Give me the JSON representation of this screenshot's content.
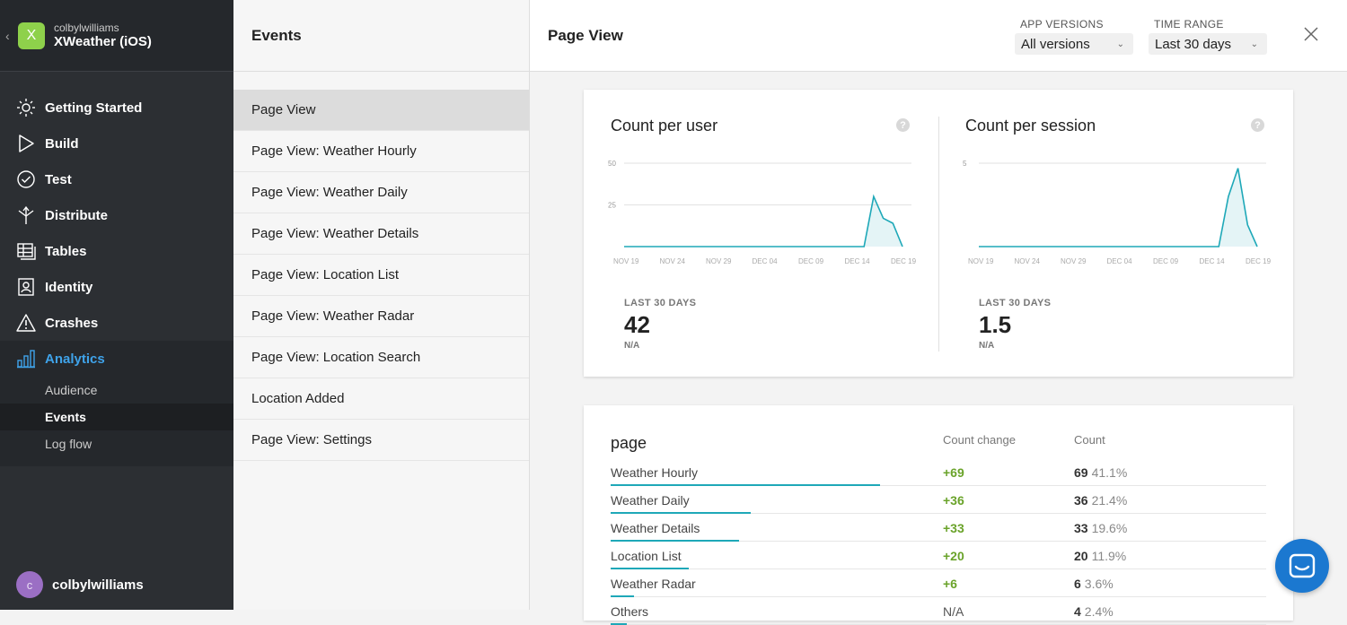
{
  "app": {
    "owner": "colbylwilliams",
    "name": "XWeather (iOS)",
    "icon_letter": "X",
    "icon_color": "#8ed14b"
  },
  "nav": {
    "items": [
      {
        "label": "Getting Started",
        "icon": "sun-icon"
      },
      {
        "label": "Build",
        "icon": "play-icon"
      },
      {
        "label": "Test",
        "icon": "check-circle-icon"
      },
      {
        "label": "Distribute",
        "icon": "distribute-icon"
      },
      {
        "label": "Tables",
        "icon": "tables-icon"
      },
      {
        "label": "Identity",
        "icon": "identity-icon"
      },
      {
        "label": "Crashes",
        "icon": "warning-icon"
      },
      {
        "label": "Analytics",
        "icon": "bar-chart-icon",
        "active": true
      }
    ],
    "sub_items": [
      {
        "label": "Audience"
      },
      {
        "label": "Events",
        "active": true
      },
      {
        "label": "Log flow"
      }
    ]
  },
  "user": {
    "initial": "c",
    "name": "colbylwilliams"
  },
  "events": {
    "header": "Events",
    "items": [
      "Page View",
      "Page View: Weather Hourly",
      "Page View: Weather Daily",
      "Page View: Weather Details",
      "Page View: Location List",
      "Page View: Weather Radar",
      "Page View: Location Search",
      "Location Added",
      "Page View: Settings"
    ],
    "selected": 0
  },
  "main": {
    "title": "Page View",
    "app_versions": {
      "label": "APP VERSIONS",
      "value": "All versions"
    },
    "time_range": {
      "label": "TIME RANGE",
      "value": "Last 30 days"
    }
  },
  "metrics": {
    "per_user": {
      "title": "Count per user",
      "stat_label": "LAST 30 DAYS",
      "stat_value": "42",
      "stat_sub": "N/A"
    },
    "per_session": {
      "title": "Count per session",
      "stat_label": "LAST 30 DAYS",
      "stat_value": "1.5",
      "stat_sub": "N/A"
    }
  },
  "chart_data": [
    {
      "type": "area",
      "title": "Count per user",
      "x_tick_labels": [
        "NOV 19",
        "NOV 24",
        "NOV 29",
        "DEC 04",
        "DEC 09",
        "DEC 14",
        "DEC 19"
      ],
      "y_tick_labels": [
        "50",
        "25"
      ],
      "ylim": [
        0,
        50
      ],
      "x": [
        "Nov 19",
        "Nov 20",
        "Nov 21",
        "Nov 22",
        "Nov 23",
        "Nov 24",
        "Nov 25",
        "Nov 26",
        "Nov 27",
        "Nov 28",
        "Nov 29",
        "Nov 30",
        "Dec 01",
        "Dec 02",
        "Dec 03",
        "Dec 04",
        "Dec 05",
        "Dec 06",
        "Dec 07",
        "Dec 08",
        "Dec 09",
        "Dec 10",
        "Dec 11",
        "Dec 12",
        "Dec 13",
        "Dec 14",
        "Dec 15",
        "Dec 16",
        "Dec 17",
        "Dec 18"
      ],
      "values": [
        0,
        0,
        0,
        0,
        0,
        0,
        0,
        0,
        0,
        0,
        0,
        0,
        0,
        0,
        0,
        0,
        0,
        0,
        0,
        0,
        0,
        0,
        0,
        0,
        0,
        0,
        30,
        17,
        14,
        0
      ],
      "color": "#1ea8b8"
    },
    {
      "type": "area",
      "title": "Count per session",
      "x_tick_labels": [
        "NOV 19",
        "NOV 24",
        "NOV 29",
        "DEC 04",
        "DEC 09",
        "DEC 14",
        "DEC 19"
      ],
      "y_tick_labels": [
        "5"
      ],
      "ylim": [
        0,
        5
      ],
      "x": [
        "Nov 19",
        "Nov 20",
        "Nov 21",
        "Nov 22",
        "Nov 23",
        "Nov 24",
        "Nov 25",
        "Nov 26",
        "Nov 27",
        "Nov 28",
        "Nov 29",
        "Nov 30",
        "Dec 01",
        "Dec 02",
        "Dec 03",
        "Dec 04",
        "Dec 05",
        "Dec 06",
        "Dec 07",
        "Dec 08",
        "Dec 09",
        "Dec 10",
        "Dec 11",
        "Dec 12",
        "Dec 13",
        "Dec 14",
        "Dec 15",
        "Dec 16",
        "Dec 17",
        "Dec 18"
      ],
      "values": [
        0,
        0,
        0,
        0,
        0,
        0,
        0,
        0,
        0,
        0,
        0,
        0,
        0,
        0,
        0,
        0,
        0,
        0,
        0,
        0,
        0,
        0,
        0,
        0,
        0,
        0,
        3,
        4.7,
        1.3,
        0
      ],
      "color": "#1ea8b8"
    },
    {
      "type": "table",
      "title": "page",
      "columns": [
        "Count change",
        "Count"
      ],
      "rows": [
        {
          "label": "Weather Hourly",
          "change": "+69",
          "count": "69",
          "pct": "41.1%",
          "share": 0.411
        },
        {
          "label": "Weather Daily",
          "change": "+36",
          "count": "36",
          "pct": "21.4%",
          "share": 0.214
        },
        {
          "label": "Weather Details",
          "change": "+33",
          "count": "33",
          "pct": "19.6%",
          "share": 0.196
        },
        {
          "label": "Location List",
          "change": "+20",
          "count": "20",
          "pct": "11.9%",
          "share": 0.119
        },
        {
          "label": "Weather Radar",
          "change": "+6",
          "count": "6",
          "pct": "3.6%",
          "share": 0.036
        },
        {
          "label": "Others",
          "change": "N/A",
          "count": "4",
          "pct": "2.4%",
          "share": 0.024
        }
      ]
    }
  ]
}
